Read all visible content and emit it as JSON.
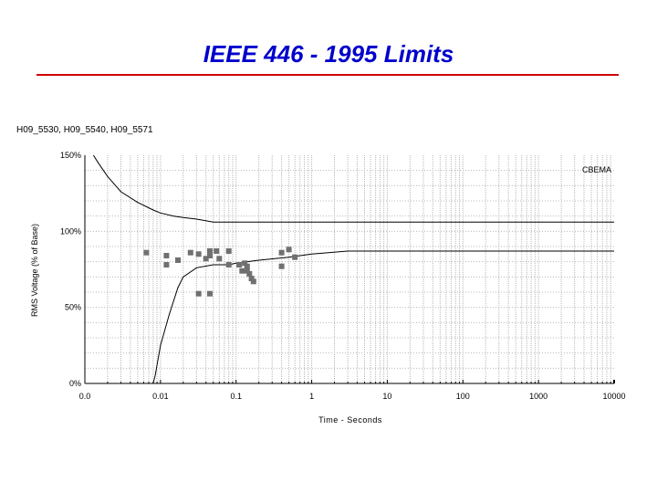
{
  "slide": {
    "title": "IEEE 446 - 1995 Limits"
  },
  "colors": {
    "title": "#0000cc",
    "rule": "#cc0000",
    "grid": "#b8b8b8",
    "curve": "#000000",
    "points": "#707070"
  },
  "chart_data": {
    "type": "scatter",
    "subtitle": "H09_5530, H09_5540, H09_5571",
    "xlabel": "Time - Seconds",
    "ylabel": "RMS Voltage (% of Base)",
    "x_scale": "log",
    "x_range": [
      0.001,
      10000
    ],
    "y_range": [
      0,
      150
    ],
    "x_ticks": [
      {
        "value": 0.001,
        "label": "0.0"
      },
      {
        "value": 0.01,
        "label": "0.01"
      },
      {
        "value": 0.1,
        "label": "0.1"
      },
      {
        "value": 1,
        "label": "1"
      },
      {
        "value": 10,
        "label": "10"
      },
      {
        "value": 100,
        "label": "100"
      },
      {
        "value": 1000,
        "label": "1000"
      },
      {
        "value": 10000,
        "label": "10000"
      }
    ],
    "y_ticks": [
      {
        "value": 0,
        "label": "0%"
      },
      {
        "value": 50,
        "label": "50%"
      },
      {
        "value": 100,
        "label": "100%"
      },
      {
        "value": 150,
        "label": "150%"
      }
    ],
    "grid": true,
    "curve_label": "CBEMA",
    "upper_curve": {
      "x": [
        0.0013,
        0.0015,
        0.002,
        0.003,
        0.005,
        0.008,
        0.01,
        0.015,
        0.02,
        0.03,
        0.05,
        0.1,
        10000
      ],
      "y": [
        150,
        145,
        136,
        126,
        119,
        114,
        112,
        110,
        109,
        108,
        106,
        106,
        106
      ]
    },
    "lower_curve": {
      "x": [
        0.001,
        0.008,
        0.0085,
        0.01,
        0.013,
        0.017,
        0.02,
        0.03,
        0.05,
        0.08,
        0.1,
        0.2,
        0.5,
        1,
        3,
        10000
      ],
      "y": [
        0,
        0,
        5,
        25,
        45,
        63,
        70,
        76,
        78,
        78,
        79,
        81,
        83,
        85,
        87,
        87
      ]
    },
    "points": {
      "x": [
        0.0065,
        0.012,
        0.012,
        0.017,
        0.025,
        0.032,
        0.032,
        0.04,
        0.045,
        0.045,
        0.045,
        0.055,
        0.06,
        0.08,
        0.08,
        0.11,
        0.12,
        0.13,
        0.14,
        0.14,
        0.15,
        0.16,
        0.17,
        0.4,
        0.4,
        0.5,
        0.6
      ],
      "y": [
        86,
        84,
        78,
        81,
        86,
        85,
        59,
        82,
        87,
        84,
        59,
        87,
        82,
        87,
        78,
        78,
        74,
        79,
        74,
        77,
        72,
        69,
        67,
        86,
        77,
        88,
        83
      ]
    }
  }
}
